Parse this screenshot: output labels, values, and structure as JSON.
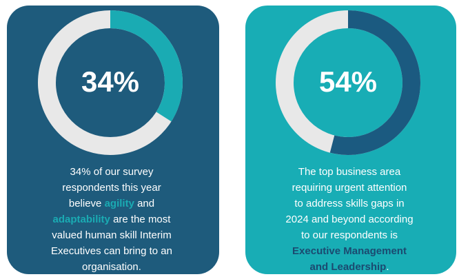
{
  "chart_data": [
    {
      "type": "donut",
      "values": [
        34
      ],
      "value_labels": [
        "34%"
      ],
      "ylim": [
        0,
        100
      ],
      "color": "#1aabb3",
      "track_color": "#e8e8e8",
      "background": "#1e5b7c",
      "caption": [
        [
          {
            "text": "34% of our survey"
          }
        ],
        [
          {
            "text": "respondents this year"
          }
        ],
        [
          {
            "text": "believe "
          },
          {
            "text": "agility",
            "color": "#1aabb3",
            "bold": true
          },
          {
            "text": " and"
          }
        ],
        [
          {
            "text": "adaptability",
            "color": "#1aabb3",
            "bold": true
          },
          {
            "text": " are the most"
          }
        ],
        [
          {
            "text": "valued human skill Interim"
          }
        ],
        [
          {
            "text": "Executives can bring to an"
          }
        ],
        [
          {
            "text": "organisation."
          }
        ]
      ]
    },
    {
      "type": "donut",
      "values": [
        54
      ],
      "value_labels": [
        "54%"
      ],
      "ylim": [
        0,
        100
      ],
      "color": "#1b5a80",
      "track_color": "#e8e8e8",
      "background": "#18adb5",
      "caption": [
        [
          {
            "text": "The top business area"
          }
        ],
        [
          {
            "text": "requiring urgent attention"
          }
        ],
        [
          {
            "text": "to address skills gaps in"
          }
        ],
        [
          {
            "text": "2024 and beyond according"
          }
        ],
        [
          {
            "text": "to our respondents is"
          }
        ],
        [
          {
            "text": "Executive Management",
            "color": "#1b4a70",
            "bold": true
          }
        ],
        [
          {
            "text": "and Leadership",
            "color": "#1b4a70",
            "bold": true
          },
          {
            "text": "."
          }
        ]
      ]
    }
  ]
}
